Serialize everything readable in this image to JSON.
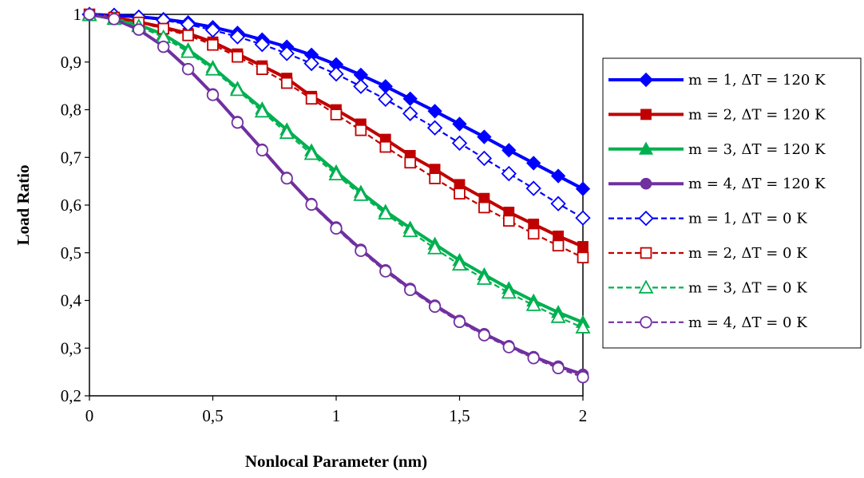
{
  "chart_data": {
    "type": "line",
    "xlabel": "Nonlocal Parameter (nm)",
    "ylabel": "Load Ratio",
    "xlim": [
      0,
      2
    ],
    "ylim": [
      0.2,
      1
    ],
    "xticks": [
      0,
      0.5,
      1,
      1.5,
      2
    ],
    "xtick_labels": [
      "0",
      "0,5",
      "1",
      "1,5",
      "2"
    ],
    "yticks": [
      0.2,
      0.3,
      0.4,
      0.5,
      0.6,
      0.7,
      0.8,
      0.9,
      1
    ],
    "ytick_labels": [
      "0,2",
      "0,3",
      "0,4",
      "0,5",
      "0,6",
      "0,7",
      "0,8",
      "0,9",
      "1"
    ],
    "grid": false,
    "legend_position": "right",
    "x": [
      0,
      0.1,
      0.2,
      0.3,
      0.4,
      0.5,
      0.6,
      0.7,
      0.8,
      0.9,
      1.0,
      1.1,
      1.2,
      1.3,
      1.4,
      1.5,
      1.6,
      1.7,
      1.8,
      1.9,
      2.0
    ],
    "series": [
      {
        "name": "m = 1,  ΔT = 120 K",
        "color": "#0000FF",
        "marker": "diamond",
        "filled": true,
        "dashed": false,
        "values": [
          1.0,
          0.998,
          0.995,
          0.99,
          0.983,
          0.973,
          0.961,
          0.947,
          0.932,
          0.915,
          0.895,
          0.873,
          0.849,
          0.823,
          0.797,
          0.77,
          0.743,
          0.715,
          0.688,
          0.661,
          0.634
        ]
      },
      {
        "name": "m = 2,  ΔT = 120 K",
        "color": "#C00000",
        "marker": "square",
        "filled": true,
        "dashed": false,
        "values": [
          1.0,
          0.994,
          0.984,
          0.973,
          0.96,
          0.942,
          0.917,
          0.892,
          0.866,
          0.828,
          0.8,
          0.77,
          0.738,
          0.704,
          0.675,
          0.643,
          0.614,
          0.585,
          0.56,
          0.535,
          0.513
        ]
      },
      {
        "name": "m = 3,  ΔT = 120 K",
        "color": "#00B050",
        "marker": "triangle",
        "filled": true,
        "dashed": false,
        "values": [
          1.0,
          0.991,
          0.978,
          0.958,
          0.926,
          0.889,
          0.845,
          0.802,
          0.758,
          0.714,
          0.67,
          0.627,
          0.587,
          0.552,
          0.518,
          0.484,
          0.454,
          0.425,
          0.399,
          0.375,
          0.354
        ]
      },
      {
        "name": "m = 4,  ΔT = 120 K",
        "color": "#7030A0",
        "marker": "circle",
        "filled": true,
        "dashed": false,
        "values": [
          1.0,
          0.99,
          0.968,
          0.933,
          0.886,
          0.833,
          0.775,
          0.717,
          0.658,
          0.603,
          0.554,
          0.507,
          0.464,
          0.425,
          0.39,
          0.358,
          0.33,
          0.305,
          0.282,
          0.262,
          0.245
        ]
      },
      {
        "name": "m = 1,  ΔT = 0 K",
        "color": "#0000FF",
        "marker": "diamond",
        "filled": false,
        "dashed": true,
        "values": [
          1.0,
          0.998,
          0.994,
          0.988,
          0.979,
          0.967,
          0.953,
          0.937,
          0.918,
          0.897,
          0.875,
          0.849,
          0.822,
          0.792,
          0.762,
          0.73,
          0.698,
          0.666,
          0.635,
          0.603,
          0.573
        ]
      },
      {
        "name": "m = 2,  ΔT = 0 K",
        "color": "#C00000",
        "marker": "square",
        "filled": false,
        "dashed": true,
        "values": [
          1.0,
          0.993,
          0.983,
          0.97,
          0.956,
          0.936,
          0.911,
          0.885,
          0.856,
          0.823,
          0.79,
          0.757,
          0.722,
          0.689,
          0.656,
          0.624,
          0.595,
          0.567,
          0.54,
          0.515,
          0.49
        ]
      },
      {
        "name": "m = 3,  ΔT = 0 K",
        "color": "#00B050",
        "marker": "triangle",
        "filled": false,
        "dashed": true,
        "values": [
          0.998,
          0.99,
          0.975,
          0.952,
          0.921,
          0.884,
          0.841,
          0.796,
          0.751,
          0.707,
          0.664,
          0.621,
          0.582,
          0.545,
          0.509,
          0.475,
          0.445,
          0.416,
          0.39,
          0.365,
          0.343
        ]
      },
      {
        "name": "m = 4,  ΔT = 0 K",
        "color": "#7030A0",
        "marker": "circle",
        "filled": false,
        "dashed": true,
        "values": [
          1.0,
          0.99,
          0.968,
          0.932,
          0.885,
          0.831,
          0.773,
          0.715,
          0.656,
          0.601,
          0.551,
          0.504,
          0.461,
          0.422,
          0.387,
          0.355,
          0.327,
          0.302,
          0.279,
          0.258,
          0.239
        ]
      }
    ]
  }
}
